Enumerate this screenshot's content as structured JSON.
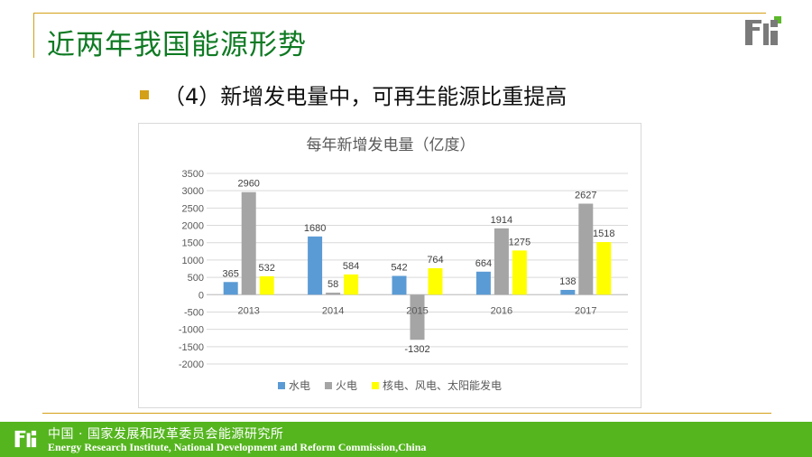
{
  "header": {
    "title": "近两年我国能源形势",
    "logo_icon": "eri-logo-icon"
  },
  "bullet": {
    "text": "（4）新增发电量中，可再生能源比重提高"
  },
  "chart_data": {
    "type": "bar",
    "title": "每年新增发电量（亿度）",
    "categories": [
      "2013",
      "2014",
      "2015",
      "2016",
      "2017"
    ],
    "series": [
      {
        "name": "水电",
        "color": "#5b9bd5",
        "values": [
          365,
          1680,
          542,
          664,
          138
        ]
      },
      {
        "name": "火电",
        "color": "#a5a5a5",
        "values": [
          2960,
          58,
          -1302,
          1914,
          2627
        ]
      },
      {
        "name": "核电、风电、太阳能发电",
        "color": "#ffff00",
        "values": [
          532,
          584,
          764,
          1275,
          1518
        ]
      }
    ],
    "ylim": [
      -2000,
      3500
    ],
    "yticks": [
      3500,
      3000,
      2500,
      2000,
      1500,
      1000,
      500,
      0,
      -500,
      -1000,
      -1500,
      -2000
    ],
    "grid": true,
    "legend_position": "bottom"
  },
  "footer": {
    "cn": "中国 · 国家发展和改革委员会能源研究所",
    "en": "Energy Research Institute, National Development and Reform Commission,China",
    "logo_icon": "eri-logo-icon"
  }
}
